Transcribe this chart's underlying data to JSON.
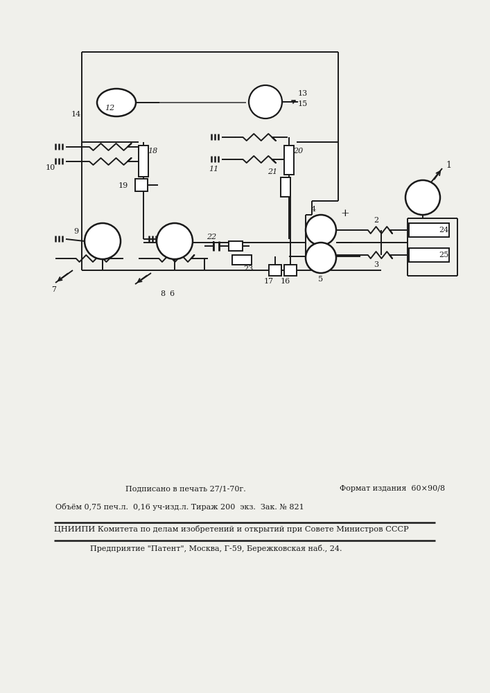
{
  "bg_color": "#f0f0eb",
  "line_color": "#1a1a1a",
  "text_color": "#1a1a1a",
  "fig_width": 7.07,
  "fig_height": 10.0,
  "footer_line1a": "      Подписано в печать 27/1-70г.",
  "footer_line1b": "Формат издания  60×90/8",
  "footer_line2": "Объём 0,75 печ.л.  0,16 уч-изд.л. Тираж 200  экз.  Зак. № 821",
  "footer_line3": "ЦНИИПИ Комитета по делам изобретений и открытий при Совете Министров СССР",
  "footer_line4": "Предприятие \"Патент\", Москва, Г-59, Бережковская наб., 24."
}
